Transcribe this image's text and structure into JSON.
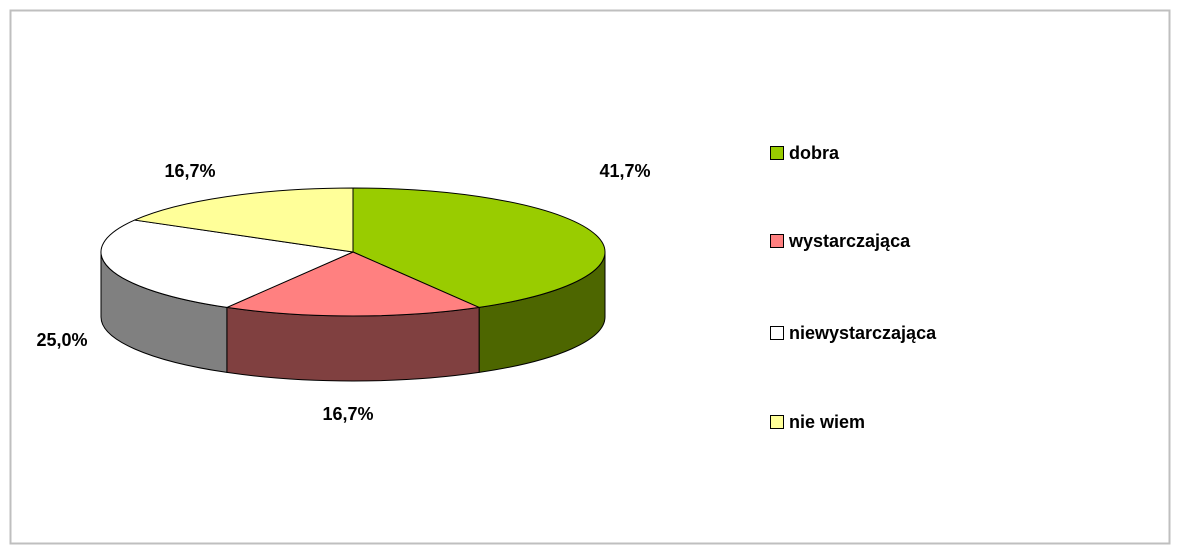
{
  "chart_data": {
    "type": "pie",
    "categories": [
      "dobra",
      "wystarczająca",
      "niewystarczająca",
      "nie wiem"
    ],
    "values": [
      41.7,
      16.7,
      25.0,
      16.7
    ],
    "value_labels": [
      "41,7%",
      "16,7%",
      "25,0%",
      "16,7%"
    ],
    "colors": [
      "#99cc00",
      "#ff8080",
      "#ffffff",
      "#ffff99"
    ],
    "legend": "right"
  }
}
